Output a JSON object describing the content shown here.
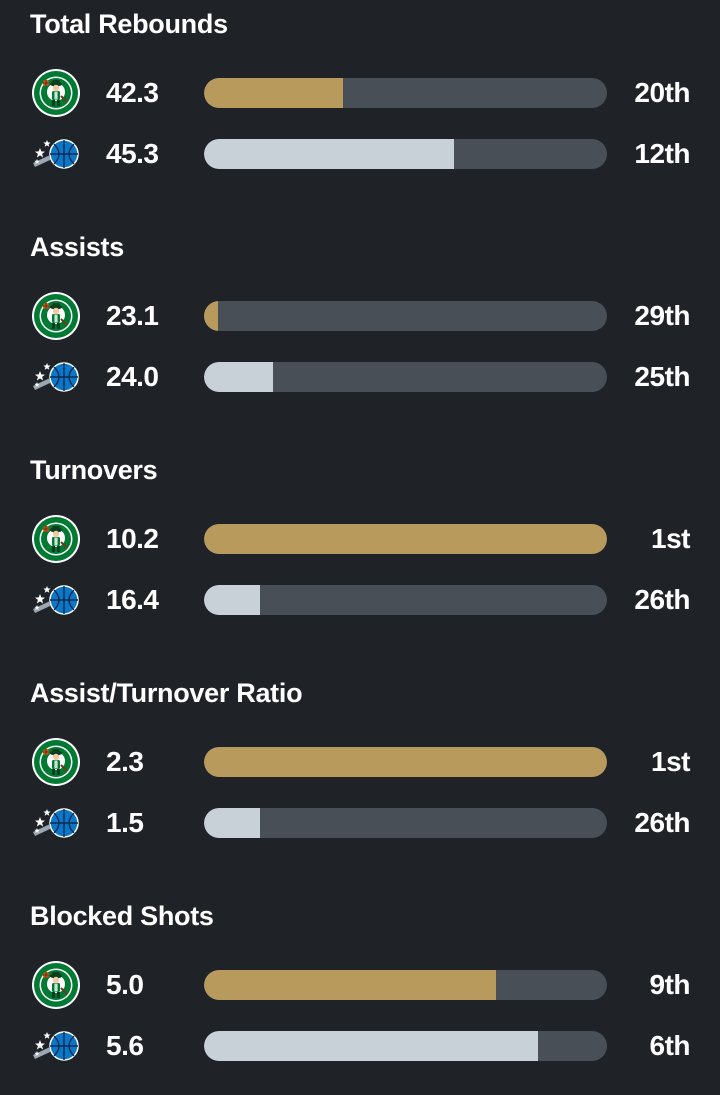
{
  "teams": {
    "home": {
      "name_icon": "celtics-logo-icon",
      "bar_color": "#b79a5c"
    },
    "away": {
      "name_icon": "magic-logo-icon",
      "bar_color": "#c8d0d8"
    }
  },
  "colors": {
    "background": "#1f2328",
    "track": "#484f56"
  },
  "sections": [
    {
      "title": "Total Rebounds",
      "rows": [
        {
          "team": "home",
          "value": "42.3",
          "rank": "20th",
          "fill_fraction": 0.345
        },
        {
          "team": "away",
          "value": "45.3",
          "rank": "12th",
          "fill_fraction": 0.62
        }
      ]
    },
    {
      "title": "Assists",
      "rows": [
        {
          "team": "home",
          "value": "23.1",
          "rank": "29th",
          "fill_fraction": 0.035
        },
        {
          "team": "away",
          "value": "24.0",
          "rank": "25th",
          "fill_fraction": 0.172
        }
      ]
    },
    {
      "title": "Turnovers",
      "rows": [
        {
          "team": "home",
          "value": "10.2",
          "rank": "1st",
          "fill_fraction": 1.0
        },
        {
          "team": "away",
          "value": "16.4",
          "rank": "26th",
          "fill_fraction": 0.138
        }
      ]
    },
    {
      "title": "Assist/Turnover Ratio",
      "rows": [
        {
          "team": "home",
          "value": "2.3",
          "rank": "1st",
          "fill_fraction": 1.0
        },
        {
          "team": "away",
          "value": "1.5",
          "rank": "26th",
          "fill_fraction": 0.138
        }
      ]
    },
    {
      "title": "Blocked Shots",
      "rows": [
        {
          "team": "home",
          "value": "5.0",
          "rank": "9th",
          "fill_fraction": 0.725
        },
        {
          "team": "away",
          "value": "5.6",
          "rank": "6th",
          "fill_fraction": 0.828
        }
      ]
    }
  ]
}
